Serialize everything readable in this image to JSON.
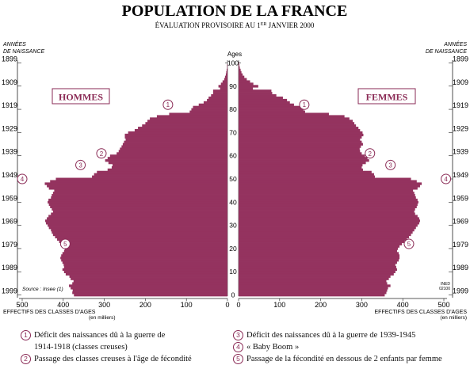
{
  "title": "POPULATION DE LA FRANCE",
  "subtitle_main": "ÉVALUATION PROVISOIRE AU 1",
  "subtitle_sup": "ER",
  "subtitle_end": " JANVIER 2000",
  "left_axis_label_1": "ANNÉES",
  "left_axis_label_2": "DE NAISSANCE",
  "right_axis_label_1": "ANNÉES",
  "right_axis_label_2": "DE NAISSANCE",
  "ages_label": "Ages",
  "source": "Source : Insee (1)",
  "credit_1": "INED",
  "credit_2": "02100",
  "bottom_label_left": "EFFECTIFS DES CLASSES D'AGES",
  "bottom_label_left_unit": "(en milliers)",
  "bottom_label_right": "EFFECTIFS DES CLASSES D'AGES",
  "bottom_label_right_unit": "(en milliers)",
  "colors": {
    "bar": "#94335f",
    "annot": "#8a2a55"
  },
  "notes": [
    {
      "num": "1",
      "text": "Déficit des naissances dû à la guerre de",
      "text2": "1914-1918 (classes creuses)"
    },
    {
      "num": "2",
      "text": "Passage des classes creuses à l'âge de fécondité"
    },
    {
      "num": "3",
      "text": "Déficit des naissances dû à la guerre de 1939-1945"
    },
    {
      "num": "4",
      "text": "« Baby Boom »"
    },
    {
      "num": "5",
      "text": "Passage de la fécondité en dessous de 2 enfants par femme"
    }
  ],
  "chart_data": {
    "type": "bar",
    "orientation": "horizontal-pyramid",
    "ages": [
      0,
      1,
      2,
      3,
      4,
      5,
      6,
      7,
      8,
      9,
      10,
      11,
      12,
      13,
      14,
      15,
      16,
      17,
      18,
      19,
      20,
      21,
      22,
      23,
      24,
      25,
      26,
      27,
      28,
      29,
      30,
      31,
      32,
      33,
      34,
      35,
      36,
      37,
      38,
      39,
      40,
      41,
      42,
      43,
      44,
      45,
      46,
      47,
      48,
      49,
      50,
      51,
      52,
      53,
      54,
      55,
      56,
      57,
      58,
      59,
      60,
      61,
      62,
      63,
      64,
      65,
      66,
      67,
      68,
      69,
      70,
      71,
      72,
      73,
      74,
      75,
      76,
      77,
      78,
      79,
      80,
      81,
      82,
      83,
      84,
      85,
      86,
      87,
      88,
      89,
      90,
      91,
      92,
      93,
      94,
      95,
      96,
      97,
      98,
      99,
      100
    ],
    "x_ticks": [
      0,
      100,
      200,
      300,
      400,
      500
    ],
    "x_unit": "en milliers",
    "age_ticks": [
      0,
      10,
      20,
      30,
      40,
      50,
      60,
      70,
      80,
      90,
      100
    ],
    "year_ticks": [
      1899,
      1909,
      1919,
      1929,
      1939,
      1949,
      1959,
      1969,
      1979,
      1989,
      1999
    ],
    "series": [
      {
        "name": "HOMMES",
        "side": "left",
        "values": [
          374,
          378,
          377,
          382,
          386,
          378,
          375,
          382,
          385,
          394,
          398,
          402,
          398,
          399,
          402,
          405,
          407,
          405,
          402,
          398,
          396,
          400,
          405,
          410,
          415,
          420,
          425,
          428,
          430,
          435,
          438,
          442,
          444,
          440,
          436,
          430,
          425,
          428,
          432,
          435,
          438,
          436,
          430,
          428,
          425,
          422,
          435,
          440,
          445,
          432,
          418,
          330,
          325,
          318,
          292,
          282,
          280,
          290,
          298,
          292,
          286,
          270,
          265,
          262,
          258,
          255,
          252,
          248,
          250,
          250,
          242,
          226,
          218,
          208,
          200,
          195,
          189,
          172,
          142,
          92,
          88,
          84,
          70,
          58,
          50,
          46,
          40,
          35,
          35,
          18,
          22,
          16,
          12,
          8,
          6,
          4,
          3,
          2,
          1,
          1,
          0
        ]
      },
      {
        "name": "FEMMES",
        "side": "right",
        "values": [
          356,
          360,
          362,
          364,
          370,
          362,
          360,
          366,
          370,
          378,
          382,
          386,
          384,
          382,
          386,
          390,
          392,
          392,
          390,
          386,
          388,
          392,
          398,
          404,
          410,
          415,
          420,
          424,
          428,
          432,
          436,
          440,
          442,
          440,
          436,
          430,
          428,
          430,
          434,
          436,
          438,
          436,
          432,
          430,
          428,
          425,
          436,
          442,
          446,
          434,
          420,
          332,
          330,
          324,
          303,
          300,
          302,
          310,
          318,
          314,
          308,
          300,
          296,
          295,
          298,
          303,
          300,
          296,
          300,
          304,
          302,
          296,
          292,
          286,
          282,
          278,
          270,
          258,
          220,
          162,
          158,
          155,
          135,
          125,
          118,
          108,
          92,
          82,
          80,
          35,
          48,
          36,
          28,
          20,
          14,
          10,
          7,
          5,
          3,
          2,
          1
        ]
      }
    ],
    "annotations": [
      {
        "num": "1",
        "age": 82,
        "x": 145,
        "side": "left"
      },
      {
        "num": "1",
        "age": 82,
        "x": 160,
        "side": "right"
      },
      {
        "num": "2",
        "age": 61,
        "x": 307,
        "side": "left"
      },
      {
        "num": "2",
        "age": 61,
        "x": 320,
        "side": "right"
      },
      {
        "num": "3",
        "age": 56,
        "x": 358,
        "side": "left"
      },
      {
        "num": "3",
        "age": 56,
        "x": 370,
        "side": "right"
      },
      {
        "num": "4",
        "age": 50,
        "x": 500,
        "side": "left"
      },
      {
        "num": "4",
        "age": 50,
        "x": 505,
        "side": "right"
      },
      {
        "num": "5",
        "age": 22,
        "x": 395,
        "side": "left"
      },
      {
        "num": "5",
        "age": 22,
        "x": 415,
        "side": "right"
      }
    ]
  }
}
